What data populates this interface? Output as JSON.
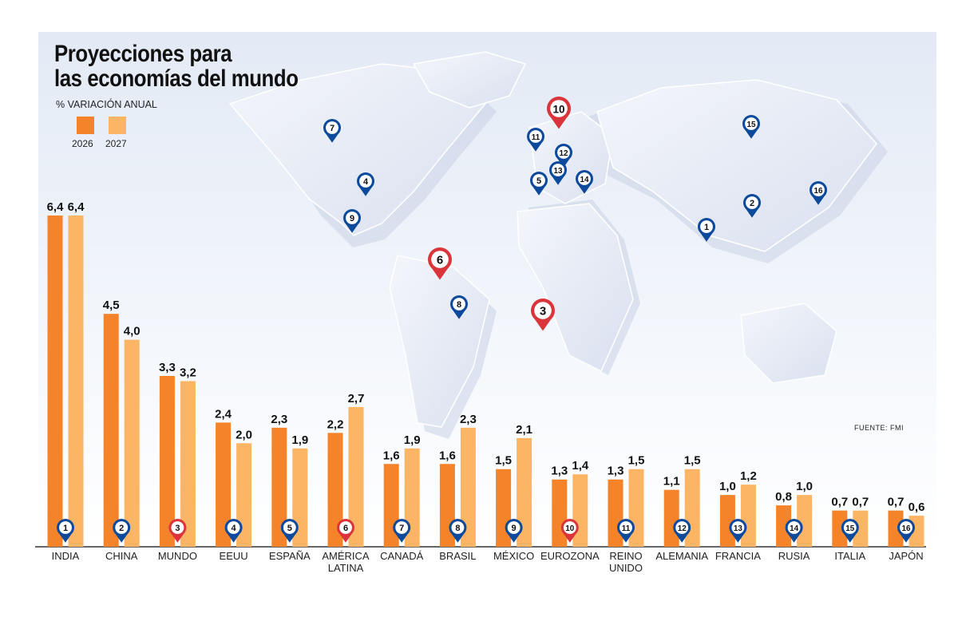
{
  "title_line1": "Proyecciones para",
  "title_line2": "las economías del mundo",
  "subtitle": "% VARIACIÓN ANUAL",
  "source": "FUENTE: FMI",
  "colors": {
    "bar_2026": "#f5832a",
    "bar_2027": "#fcb564",
    "pin_blue": "#0d4a9c",
    "pin_red": "#d9353a",
    "map_land": "#e4e9f4",
    "map_bg": "#eef3fa"
  },
  "legend": [
    {
      "name": "2026",
      "color": "#f5832a"
    },
    {
      "name": "2027",
      "color": "#fcb564"
    }
  ],
  "chart_data": {
    "type": "bar",
    "title": "Proyecciones para las economías del mundo",
    "ylabel": "% VARIACIÓN ANUAL",
    "grid": false,
    "legend_position": "top-left",
    "categories": [
      "INDIA",
      "CHINA",
      "MUNDO",
      "EEUU",
      "ESPAÑA",
      "AMÉRICA LATINA",
      "CANADÁ",
      "BRASIL",
      "MÉXICO",
      "EUROZONA",
      "REINO UNIDO",
      "ALEMANIA",
      "FRANCIA",
      "RUSIA",
      "ITALIA",
      "JAPÓN"
    ],
    "category_lines": [
      [
        "INDIA"
      ],
      [
        "CHINA"
      ],
      [
        "MUNDO"
      ],
      [
        "EEUU"
      ],
      [
        "ESPAÑA"
      ],
      [
        "AMÉRICA",
        "LATINA"
      ],
      [
        "CANADÁ"
      ],
      [
        "BRASIL"
      ],
      [
        "MÉXICO"
      ],
      [
        "EUROZONA"
      ],
      [
        "REINO",
        "UNIDO"
      ],
      [
        "ALEMANIA"
      ],
      [
        "FRANCIA"
      ],
      [
        "RUSIA"
      ],
      [
        "ITALIA"
      ],
      [
        "JAPÓN"
      ]
    ],
    "markers": [
      "1",
      "2",
      "3",
      "4",
      "5",
      "6",
      "7",
      "8",
      "9",
      "10",
      "11",
      "12",
      "13",
      "14",
      "15",
      "16"
    ],
    "marker_colors": [
      "blue",
      "blue",
      "red",
      "blue",
      "blue",
      "red",
      "blue",
      "blue",
      "blue",
      "red",
      "blue",
      "blue",
      "blue",
      "blue",
      "blue",
      "blue"
    ],
    "series": [
      {
        "name": "2026",
        "values": [
          6.4,
          4.5,
          3.3,
          2.4,
          2.3,
          2.2,
          1.6,
          1.6,
          1.5,
          1.3,
          1.3,
          1.1,
          1.0,
          0.8,
          0.7,
          0.7
        ]
      },
      {
        "name": "2027",
        "values": [
          6.4,
          4.0,
          3.2,
          2.0,
          1.9,
          2.7,
          1.9,
          2.3,
          2.1,
          1.4,
          1.5,
          1.5,
          1.2,
          1.0,
          0.7,
          0.6
        ]
      }
    ],
    "value_labels": [
      [
        "6,4",
        "4,5",
        "3,3",
        "2,4",
        "2,3",
        "2,2",
        "1,6",
        "1,6",
        "1,5",
        "1,3",
        "1,3",
        "1,1",
        "1,0",
        "0,8",
        "0,7",
        "0,7"
      ],
      [
        "6,4",
        "4,0",
        "3,2",
        "2,0",
        "1,9",
        "2,7",
        "1,9",
        "2,3",
        "2,1",
        "1,4",
        "1,5",
        "1,5",
        "1,2",
        "1,0",
        "0,7",
        "0,6"
      ]
    ],
    "ylim": [
      0,
      6.4
    ]
  },
  "map_pins": [
    {
      "label": "1",
      "color": "blue"
    },
    {
      "label": "2",
      "color": "blue"
    },
    {
      "label": "3",
      "color": "red"
    },
    {
      "label": "4",
      "color": "blue"
    },
    {
      "label": "5",
      "color": "blue"
    },
    {
      "label": "6",
      "color": "red"
    },
    {
      "label": "7",
      "color": "blue"
    },
    {
      "label": "8",
      "color": "blue"
    },
    {
      "label": "9",
      "color": "blue"
    },
    {
      "label": "10",
      "color": "red"
    },
    {
      "label": "11",
      "color": "blue"
    },
    {
      "label": "12",
      "color": "blue"
    },
    {
      "label": "13",
      "color": "blue"
    },
    {
      "label": "14",
      "color": "blue"
    },
    {
      "label": "15",
      "color": "blue"
    },
    {
      "label": "16",
      "color": "blue"
    }
  ]
}
